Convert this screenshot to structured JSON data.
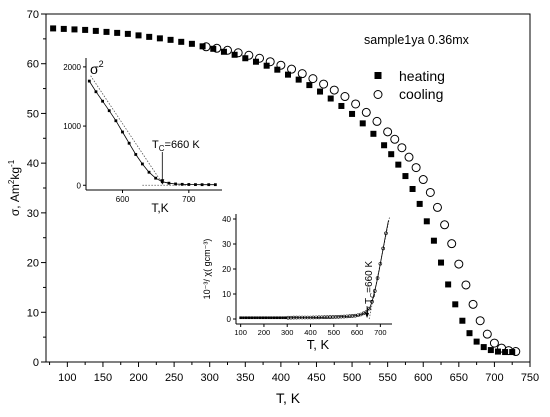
{
  "chart_data": [
    {
      "type": "scatter",
      "title": "",
      "annotation": "sample1ya 0.36mx",
      "xlabel": "T, K",
      "ylabel_main": "σ, Am",
      "ylabel_sup1": "2",
      "ylabel_mid": "kg",
      "ylabel_sup2": "-1",
      "xlim": [
        70,
        750
      ],
      "ylim": [
        0,
        70
      ],
      "xticks": [
        100,
        150,
        200,
        250,
        300,
        350,
        400,
        450,
        500,
        550,
        600,
        650,
        700,
        750
      ],
      "yticks": [
        0,
        10,
        20,
        30,
        40,
        50,
        60,
        70
      ],
      "legend_position": "top-right",
      "series": [
        {
          "name": "heating",
          "marker": "filled-square",
          "x": [
            80,
            95,
            110,
            125,
            140,
            155,
            170,
            185,
            200,
            215,
            230,
            245,
            260,
            275,
            290,
            305,
            320,
            335,
            350,
            365,
            380,
            395,
            410,
            425,
            440,
            455,
            470,
            485,
            500,
            515,
            530,
            545,
            555,
            565,
            575,
            585,
            595,
            605,
            615,
            625,
            635,
            645,
            655,
            665,
            675,
            685,
            695,
            705,
            715,
            725
          ],
          "y": [
            67.1,
            67.0,
            66.9,
            66.8,
            66.6,
            66.4,
            66.2,
            66.0,
            65.7,
            65.4,
            65.1,
            64.8,
            64.4,
            64.0,
            63.5,
            63.0,
            62.4,
            61.8,
            61.1,
            60.4,
            59.6,
            58.8,
            57.8,
            56.8,
            55.7,
            54.4,
            53.0,
            51.5,
            49.9,
            48.0,
            45.9,
            43.6,
            41.8,
            39.7,
            37.4,
            34.8,
            31.8,
            28.3,
            24.4,
            20.0,
            15.6,
            11.6,
            8.3,
            5.8,
            4.1,
            3.0,
            2.4,
            2.1,
            2.0,
            2.0
          ]
        },
        {
          "name": "cooling",
          "marker": "open-circle",
          "x": [
            295,
            310,
            325,
            340,
            355,
            370,
            385,
            400,
            415,
            430,
            445,
            460,
            475,
            490,
            505,
            520,
            535,
            550,
            560,
            570,
            580,
            590,
            600,
            610,
            620,
            630,
            640,
            650,
            660,
            670,
            680,
            690,
            700,
            710,
            720,
            730
          ],
          "y": [
            63.4,
            63.1,
            62.7,
            62.2,
            61.7,
            61.1,
            60.4,
            59.7,
            58.9,
            58.0,
            57.0,
            55.9,
            54.7,
            53.4,
            51.9,
            50.2,
            48.4,
            46.3,
            44.8,
            43.1,
            41.2,
            39.1,
            36.7,
            34.1,
            31.1,
            27.6,
            23.8,
            19.7,
            15.5,
            11.6,
            8.3,
            5.6,
            3.8,
            2.8,
            2.3,
            2.1
          ]
        }
      ],
      "legend": {
        "heating_label": "heating",
        "cooling_label": "cooling"
      }
    },
    {
      "type": "line",
      "name": "inset-sigma-squared",
      "ylabel_base": "σ",
      "ylabel_sup": "2",
      "xlabel": "T,K",
      "annotation_base": "T",
      "annotation_sub": "C",
      "annotation_rest": "=660 K",
      "xlim": [
        545,
        750
      ],
      "ylim": [
        -80,
        2150
      ],
      "xticks": [
        600,
        700
      ],
      "yticks": [
        0,
        1000,
        2000
      ],
      "x": [
        550,
        560,
        570,
        580,
        590,
        600,
        610,
        620,
        630,
        640,
        650,
        660,
        670,
        680,
        690,
        700,
        710,
        720,
        730,
        740
      ],
      "y": [
        1760,
        1580,
        1420,
        1260,
        1090,
        900,
        710,
        520,
        360,
        220,
        120,
        60,
        35,
        22,
        16,
        13,
        11,
        10,
        10,
        10
      ],
      "tangent_line": {
        "x": [
          552,
          662
        ],
        "y": [
          1850,
          0
        ]
      }
    },
    {
      "type": "line",
      "name": "inset-inverse-susceptibility",
      "ylabel": "10⁻³/ χ( gcm⁻³)",
      "xlabel": "T, K",
      "annotation_base": "T",
      "annotation_sub": "C",
      "annotation_rest": "=660 K",
      "xlim": [
        80,
        750
      ],
      "ylim": [
        -2,
        42
      ],
      "xticks": [
        100,
        200,
        300,
        400,
        500,
        600,
        700
      ],
      "yticks": [
        0,
        10,
        20,
        30,
        40
      ],
      "x": [
        100,
        150,
        200,
        250,
        300,
        350,
        400,
        450,
        500,
        550,
        600,
        620,
        640,
        655,
        665,
        675,
        685,
        695,
        705,
        715,
        725,
        735
      ],
      "y": [
        0.5,
        0.5,
        0.5,
        0.5,
        0.5,
        0.6,
        0.6,
        0.7,
        0.8,
        1.0,
        1.4,
        1.9,
        2.8,
        4.5,
        7.2,
        10.8,
        15.0,
        19.6,
        24.6,
        29.8,
        34.8,
        39.5
      ]
    }
  ]
}
